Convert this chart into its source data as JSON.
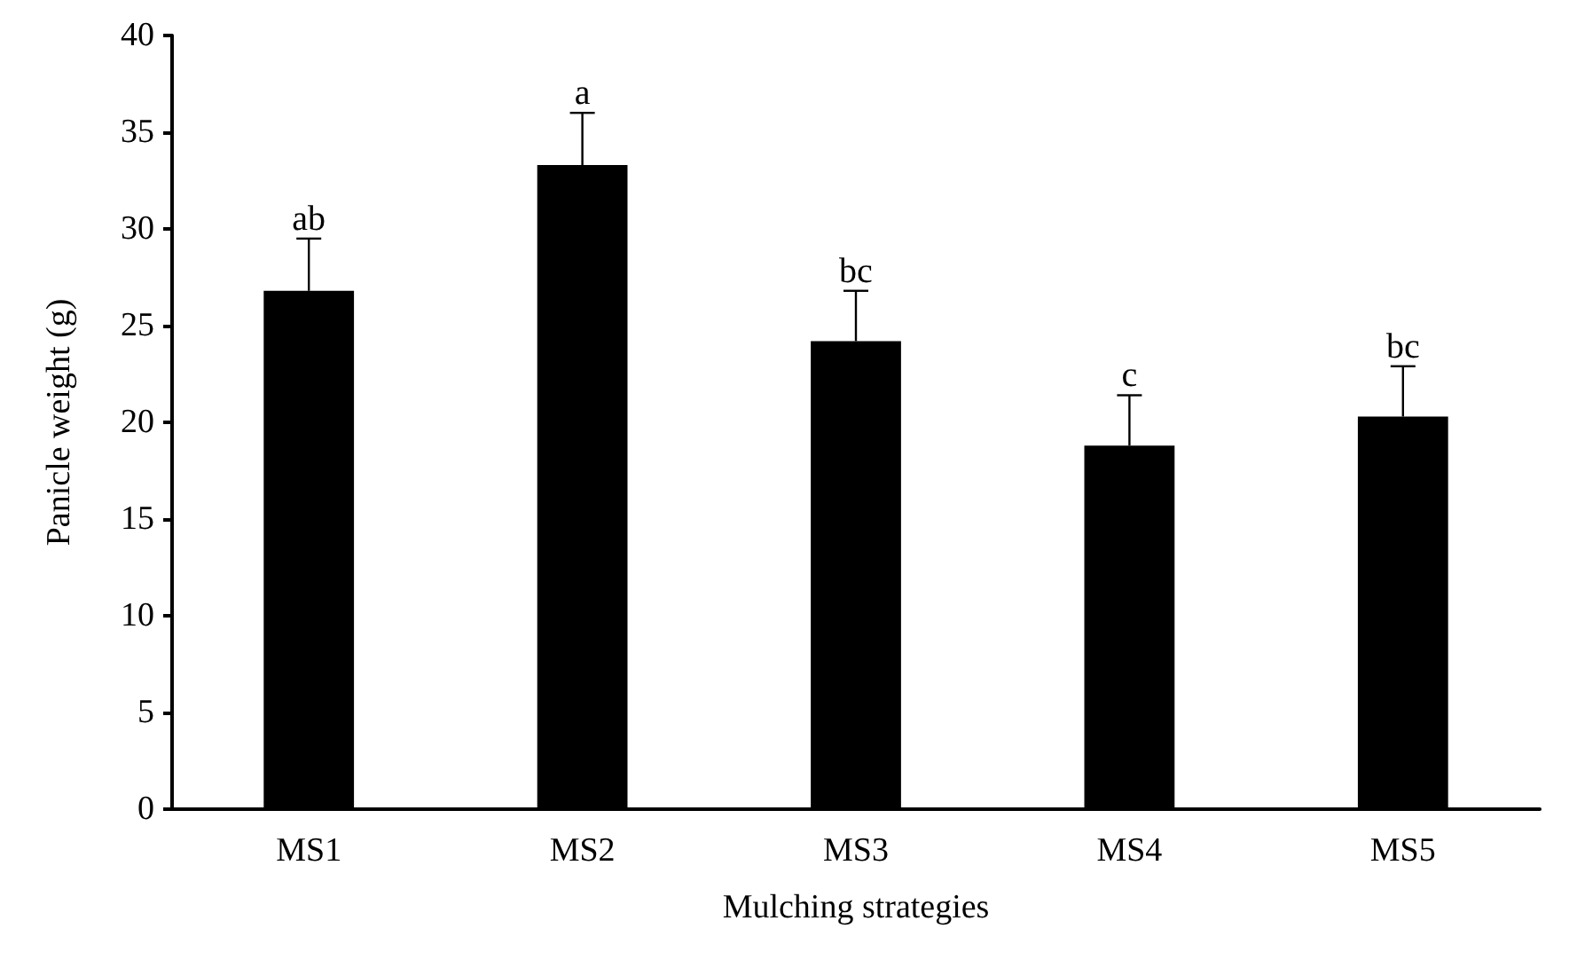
{
  "chart_data": {
    "type": "bar",
    "xlabel": "Mulching strategies",
    "ylabel": "Panicle weight (g)",
    "categories": [
      "MS1",
      "MS2",
      "MS3",
      "MS4",
      "MS5"
    ],
    "values": [
      26.8,
      33.3,
      24.2,
      18.8,
      20.3
    ],
    "errors": [
      [
        26.8,
        29.5
      ],
      [
        33.3,
        36.0
      ],
      [
        24.2,
        26.8
      ],
      [
        18.8,
        21.4
      ],
      [
        20.3,
        22.9
      ]
    ],
    "color": "#000000",
    "ylim": [
      0,
      40
    ],
    "yticks": [
      0,
      5,
      10,
      15,
      20,
      25,
      30,
      35,
      40
    ],
    "grid": false,
    "annotations": [
      {
        "text": "ab",
        "x": "MS1",
        "y": 29.5
      },
      {
        "text": "a",
        "x": "MS2",
        "y": 36.0
      },
      {
        "text": "bc",
        "x": "MS3",
        "y": 26.8
      },
      {
        "text": "c",
        "x": "MS4",
        "y": 21.4
      },
      {
        "text": "bc",
        "x": "MS5",
        "y": 22.9
      }
    ]
  }
}
